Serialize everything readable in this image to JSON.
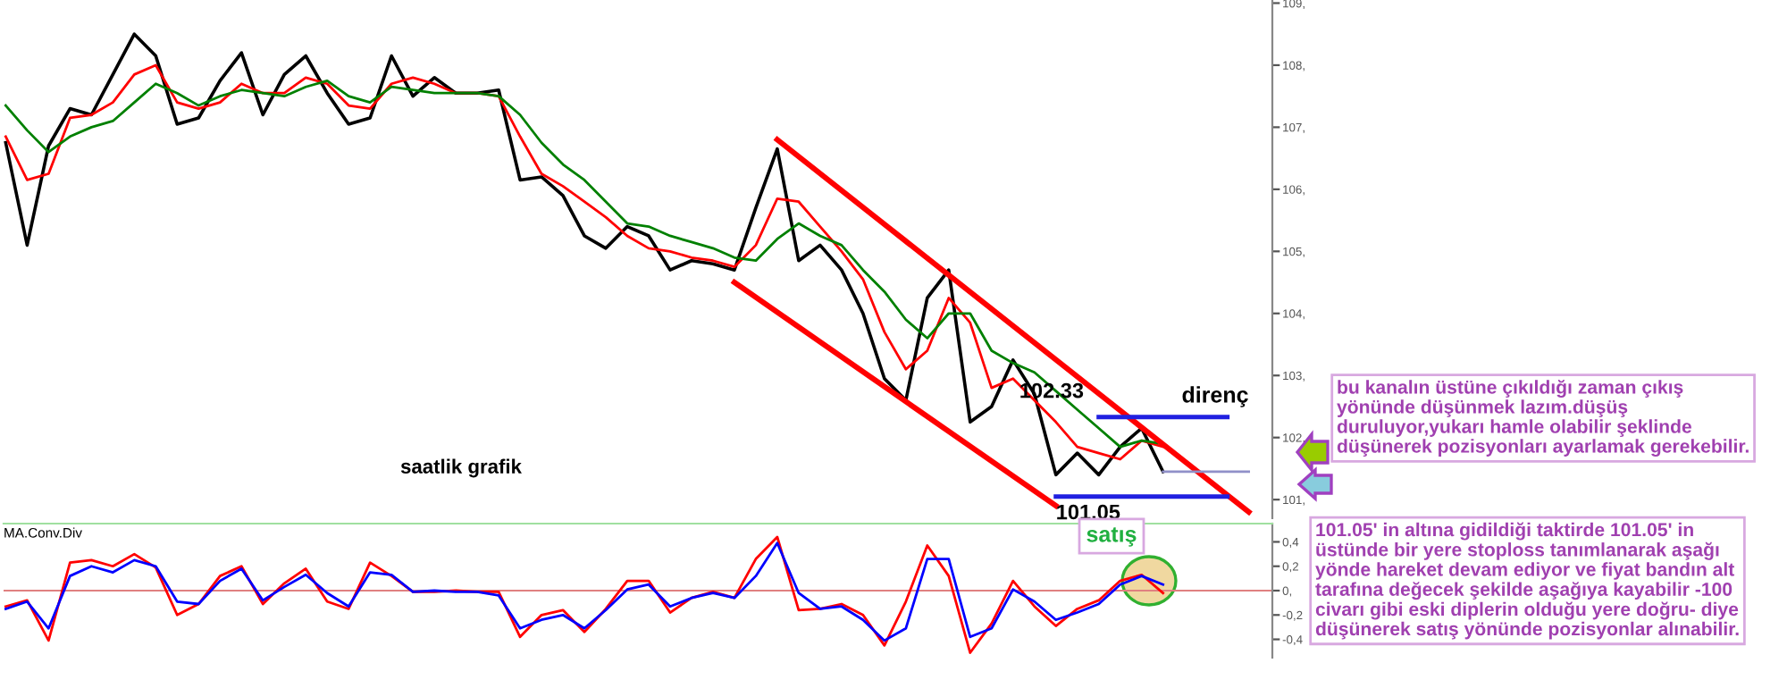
{
  "chart_data": [
    {
      "type": "line",
      "categories": [
        null,
        null,
        null,
        null,
        null,
        null,
        null,
        null,
        null,
        null,
        null,
        null,
        null,
        null,
        null,
        null,
        null,
        null,
        null,
        null,
        null,
        null,
        null,
        null,
        null,
        null,
        null,
        null,
        null,
        null,
        null,
        null,
        null,
        null,
        null,
        null,
        null,
        null,
        null,
        null,
        null,
        null,
        null,
        null,
        null,
        null,
        null,
        null,
        null,
        null,
        null,
        null,
        null,
        null,
        null,
        null,
        null,
        null,
        null
      ],
      "series": [
        {
          "color": "#000000",
          "values": [
            106.75,
            105.1,
            106.7,
            107.3,
            107.2,
            107.85,
            108.5,
            108.15,
            107.05,
            107.15,
            107.75,
            108.2,
            107.2,
            107.85,
            108.15,
            107.55,
            107.05,
            107.15,
            108.15,
            107.5,
            107.8,
            107.55,
            107.55,
            107.6,
            106.15,
            106.2,
            105.9,
            105.25,
            105.05,
            105.4,
            105.25,
            104.7,
            104.85,
            104.8,
            104.7,
            105.7,
            106.65,
            104.85,
            105.1,
            104.7,
            104.0,
            102.95,
            102.6,
            104.25,
            104.7,
            102.25,
            102.5,
            103.25,
            102.7,
            101.4,
            101.75,
            101.4,
            101.85,
            102.15,
            101.45,
            null,
            null,
            null,
            null
          ]
        },
        {
          "color": "#ff0000",
          "values": [
            106.85,
            106.15,
            106.25,
            107.15,
            107.2,
            107.4,
            107.85,
            108.0,
            107.4,
            107.3,
            107.4,
            107.7,
            107.55,
            107.55,
            107.8,
            107.7,
            107.35,
            107.3,
            107.7,
            107.8,
            107.7,
            107.55,
            107.55,
            107.5,
            106.85,
            106.25,
            106.05,
            105.8,
            105.55,
            105.25,
            105.05,
            105.0,
            104.9,
            104.85,
            104.75,
            105.1,
            105.85,
            105.8,
            105.4,
            105.0,
            104.55,
            103.7,
            103.1,
            103.4,
            104.25,
            103.85,
            102.8,
            102.95,
            102.6,
            102.25,
            101.85,
            101.75,
            101.65,
            101.95,
            101.85,
            null,
            null,
            null,
            null
          ]
        },
        {
          "color": "#008000",
          "values": [
            107.35,
            106.95,
            106.6,
            106.85,
            107.0,
            107.1,
            107.4,
            107.7,
            107.55,
            107.35,
            107.5,
            107.6,
            107.55,
            107.5,
            107.65,
            107.75,
            107.5,
            107.4,
            107.65,
            107.6,
            107.55,
            107.55,
            107.55,
            107.5,
            107.2,
            106.75,
            106.4,
            106.15,
            105.8,
            105.45,
            105.4,
            105.25,
            105.15,
            105.05,
            104.9,
            104.85,
            105.2,
            105.45,
            105.25,
            105.1,
            104.7,
            104.35,
            103.9,
            103.6,
            104.0,
            104.0,
            103.4,
            103.2,
            103.05,
            102.75,
            102.45,
            102.15,
            101.85,
            101.95,
            101.9,
            null,
            null,
            null,
            null
          ]
        },
        {
          "color": "#ff0000",
          "values": [
            null,
            null,
            null,
            null,
            null,
            null,
            null,
            null,
            null,
            null,
            null,
            null,
            null,
            null,
            null,
            null,
            null,
            null,
            null,
            null,
            null,
            null,
            null,
            null,
            null,
            null,
            null,
            null,
            null,
            null,
            null,
            null,
            null,
            null,
            null,
            null,
            106.8,
            null,
            null,
            null,
            null,
            null,
            null,
            null,
            null,
            null,
            null,
            null,
            null,
            null,
            null,
            null,
            null,
            null,
            null,
            null,
            null,
            null,
            100.8
          ]
        },
        {
          "color": "#ff0000",
          "values": [
            null,
            null,
            null,
            null,
            null,
            null,
            null,
            null,
            null,
            null,
            null,
            null,
            null,
            null,
            null,
            null,
            null,
            null,
            null,
            null,
            null,
            null,
            null,
            null,
            null,
            null,
            null,
            null,
            null,
            null,
            null,
            null,
            null,
            null,
            104.5,
            null,
            null,
            null,
            null,
            null,
            null,
            null,
            null,
            null,
            null,
            null,
            null,
            null,
            null,
            100.9,
            null,
            null,
            null,
            null,
            null,
            null,
            null,
            null,
            null
          ]
        },
        {
          "name": "102.33",
          "color": "#2020e0",
          "values": [
            null,
            null,
            null,
            null,
            null,
            null,
            null,
            null,
            null,
            null,
            null,
            null,
            null,
            null,
            null,
            null,
            null,
            null,
            null,
            null,
            null,
            null,
            null,
            null,
            null,
            null,
            null,
            null,
            null,
            null,
            null,
            null,
            null,
            null,
            null,
            null,
            null,
            null,
            null,
            null,
            null,
            null,
            null,
            null,
            null,
            null,
            null,
            null,
            null,
            null,
            null,
            102.33,
            102.33,
            102.33,
            102.33,
            102.33,
            102.33,
            102.33,
            null
          ]
        },
        {
          "name": "101.05",
          "color": "#2020e0",
          "values": [
            null,
            null,
            null,
            null,
            null,
            null,
            null,
            null,
            null,
            null,
            null,
            null,
            null,
            null,
            null,
            null,
            null,
            null,
            null,
            null,
            null,
            null,
            null,
            null,
            null,
            null,
            null,
            null,
            null,
            null,
            null,
            null,
            null,
            null,
            null,
            null,
            null,
            null,
            null,
            null,
            null,
            null,
            null,
            null,
            null,
            null,
            null,
            null,
            null,
            101.05,
            101.05,
            101.05,
            101.05,
            101.05,
            101.05,
            101.05,
            101.05,
            101.05,
            null
          ]
        },
        {
          "color": "#9090c8",
          "values": [
            null,
            null,
            null,
            null,
            null,
            null,
            null,
            null,
            null,
            null,
            null,
            null,
            null,
            null,
            null,
            null,
            null,
            null,
            null,
            null,
            null,
            null,
            null,
            null,
            null,
            null,
            null,
            null,
            null,
            null,
            null,
            null,
            null,
            null,
            null,
            null,
            null,
            null,
            null,
            null,
            null,
            null,
            null,
            null,
            null,
            null,
            null,
            null,
            null,
            null,
            null,
            null,
            null,
            null,
            101.45,
            101.45,
            101.45,
            101.45,
            101.45
          ]
        }
      ],
      "ylim": [
        100.7,
        109.05
      ],
      "yticks": [
        {
          "value": 109,
          "label": "109,"
        },
        {
          "value": 108,
          "label": "108,"
        },
        {
          "value": 107,
          "label": "107,"
        },
        {
          "value": 106,
          "label": "106,"
        },
        {
          "value": 105,
          "label": "105,"
        },
        {
          "value": 104,
          "label": "104,"
        },
        {
          "value": 103,
          "label": "103,"
        },
        {
          "value": 102,
          "label": "102,"
        },
        {
          "value": 101,
          "label": "101,"
        }
      ],
      "tick_labels": "y",
      "annotations": [
        "saatlik grafik",
        "direnç",
        "bu kanalın üstüne çıkıldığı zaman çıkış\nyönünde düşünmek lazım.düşüş\nduruluyor,yukarı hamle olabilir şeklinde\ndüşünerek pozisyonları ayarlamak gerekebilir.",
        "101.05' in altına gidildiği taktirde 101.05' in\nüstünde bir yere stoploss tanımlanarak aşağı\nyönde hareket devam ediyor ve fiyat bandın alt\ntarafına değecek şekilde aşağıya kayabilir -100\ncivarı gibi eski diplerin olduğu yere doğru- diye\ndüşünerek satış yönünde pozisyonlar alınabilir."
      ]
    },
    {
      "type": "line",
      "title": "MA.Conv.Div",
      "categories": [
        null,
        null,
        null,
        null,
        null,
        null,
        null,
        null,
        null,
        null,
        null,
        null,
        null,
        null,
        null,
        null,
        null,
        null,
        null,
        null,
        null,
        null,
        null,
        null,
        null,
        null,
        null,
        null,
        null,
        null,
        null,
        null,
        null,
        null,
        null,
        null,
        null,
        null,
        null,
        null,
        null,
        null,
        null,
        null,
        null,
        null,
        null,
        null,
        null,
        null,
        null,
        null,
        null,
        null,
        null,
        null,
        null,
        null,
        null
      ],
      "series": [
        {
          "color": "#ff0000",
          "values": [
            -0.13,
            -0.08,
            -0.41,
            0.23,
            0.25,
            0.2,
            0.3,
            0.19,
            -0.2,
            -0.11,
            0.12,
            0.2,
            -0.11,
            0.06,
            0.18,
            -0.09,
            -0.15,
            0.23,
            0.12,
            -0.01,
            -0.01,
            0,
            -0.01,
            -0.01,
            -0.38,
            -0.2,
            -0.16,
            -0.34,
            -0.15,
            0.08,
            0.08,
            -0.18,
            -0.06,
            -0.01,
            -0.06,
            0.26,
            0.44,
            -0.16,
            -0.15,
            -0.11,
            -0.2,
            -0.45,
            -0.09,
            0.37,
            0.12,
            -0.51,
            -0.27,
            0.08,
            -0.13,
            -0.29,
            -0.15,
            -0.08,
            0.08,
            0.13,
            -0.02,
            null,
            null,
            null,
            null
          ]
        },
        {
          "color": "#0000ff",
          "values": [
            -0.15,
            -0.09,
            -0.31,
            0.12,
            0.2,
            0.15,
            0.25,
            0.2,
            -0.09,
            -0.11,
            0.08,
            0.18,
            -0.08,
            0.03,
            0.13,
            -0.02,
            -0.13,
            0.15,
            0.13,
            -0.01,
            0,
            -0.01,
            -0.01,
            -0.04,
            -0.31,
            -0.24,
            -0.2,
            -0.31,
            -0.16,
            0.01,
            0.05,
            -0.13,
            -0.06,
            -0.02,
            -0.06,
            0.12,
            0.39,
            -0.02,
            -0.15,
            -0.13,
            -0.24,
            -0.41,
            -0.31,
            0.26,
            0.26,
            -0.38,
            -0.31,
            0.01,
            -0.09,
            -0.24,
            -0.18,
            -0.11,
            0.05,
            0.12,
            0.05,
            null,
            null,
            null,
            null
          ]
        }
      ],
      "ylim": [
        -0.55,
        0.55
      ],
      "yticks": [
        {
          "value": 0.4,
          "label": "0,4"
        },
        {
          "value": 0.2,
          "label": "0,2"
        },
        {
          "value": 0,
          "label": "0,"
        },
        {
          "value": -0.2,
          "label": "-0,2"
        },
        {
          "value": -0.4,
          "label": "-0,4"
        }
      ],
      "tick_labels": "y",
      "ref_lines": [
        {
          "axis": "y",
          "value": 0,
          "color": "#e08080"
        }
      ],
      "annotations": [
        "satış"
      ]
    }
  ]
}
